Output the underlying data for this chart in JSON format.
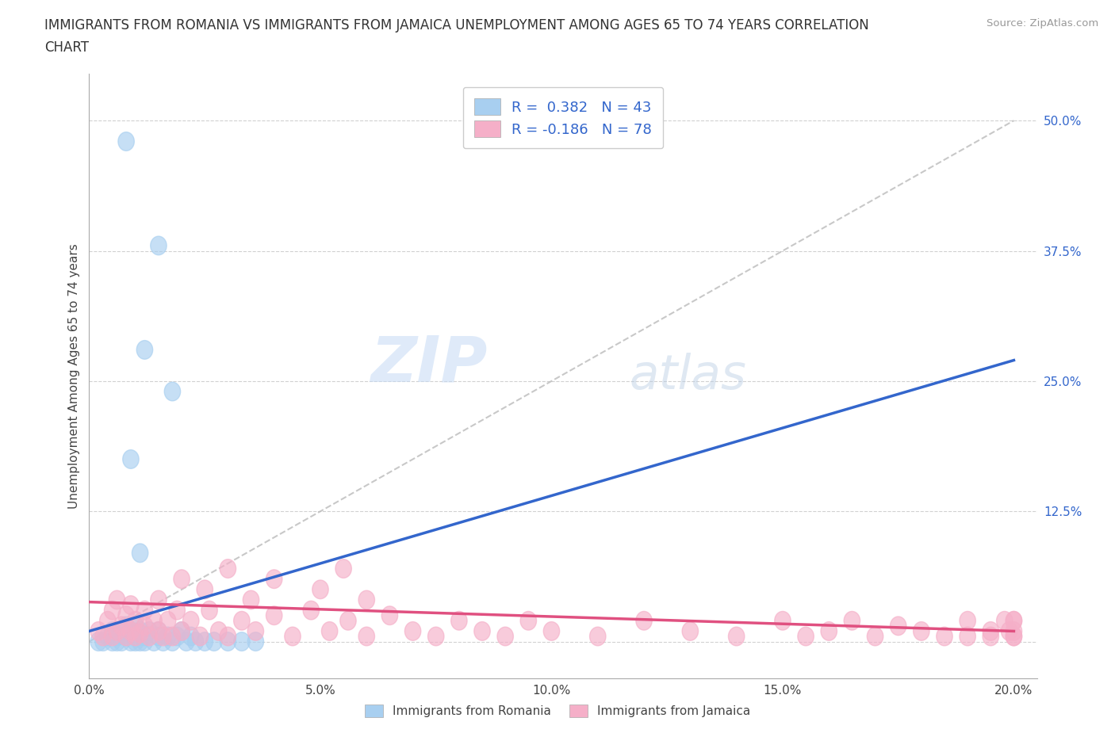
{
  "title_line1": "IMMIGRANTS FROM ROMANIA VS IMMIGRANTS FROM JAMAICA UNEMPLOYMENT AMONG AGES 65 TO 74 YEARS CORRELATION",
  "title_line2": "CHART",
  "source": "Source: ZipAtlas.com",
  "ylabel": "Unemployment Among Ages 65 to 74 years",
  "xlim": [
    0.0,
    0.205
  ],
  "ylim": [
    -0.035,
    0.545
  ],
  "yticks": [
    0.0,
    0.125,
    0.25,
    0.375,
    0.5
  ],
  "ytick_labels": [
    "",
    "12.5%",
    "25.0%",
    "37.5%",
    "50.0%"
  ],
  "xticks": [
    0.0,
    0.05,
    0.1,
    0.15,
    0.2
  ],
  "xtick_labels": [
    "0.0%",
    "5.0%",
    "10.0%",
    "15.0%",
    "20.0%"
  ],
  "romania_color": "#a8cff0",
  "romania_edge_color": "#a8cff0",
  "jamaica_color": "#f5afc8",
  "jamaica_edge_color": "#f5afc8",
  "romania_line_color": "#3366cc",
  "jamaica_line_color": "#e05080",
  "ref_line_color": "#bbbbbb",
  "R_romania": 0.382,
  "N_romania": 43,
  "R_jamaica": -0.186,
  "N_jamaica": 78,
  "watermark_zip": "ZIP",
  "watermark_atlas": "atlas",
  "legend_label_romania": "Immigrants from Romania",
  "legend_label_jamaica": "Immigrants from Jamaica",
  "background_color": "#ffffff",
  "grid_color": "#cccccc",
  "romania_trend_x": [
    0.0,
    0.2
  ],
  "romania_trend_y": [
    0.01,
    0.27
  ],
  "jamaica_trend_x": [
    0.0,
    0.2
  ],
  "jamaica_trend_y": [
    0.038,
    0.01
  ],
  "ref_trend_x": [
    0.0,
    0.2
  ],
  "ref_trend_y": [
    0.0,
    0.5
  ],
  "romania_x": [
    0.002,
    0.003,
    0.004,
    0.005,
    0.005,
    0.006,
    0.006,
    0.007,
    0.007,
    0.008,
    0.008,
    0.009,
    0.009,
    0.01,
    0.01,
    0.01,
    0.011,
    0.011,
    0.012,
    0.012,
    0.013,
    0.014,
    0.015,
    0.015,
    0.016,
    0.017,
    0.018,
    0.019,
    0.02,
    0.021,
    0.022,
    0.023,
    0.025,
    0.027,
    0.03,
    0.033,
    0.036,
    0.015,
    0.012,
    0.008,
    0.018,
    0.009,
    0.011
  ],
  "romania_y": [
    0.0,
    0.0,
    0.005,
    0.0,
    0.01,
    0.005,
    0.0,
    0.01,
    0.0,
    0.005,
    0.015,
    0.0,
    0.01,
    0.0,
    0.005,
    0.015,
    0.0,
    0.01,
    0.005,
    0.0,
    0.01,
    0.0,
    0.005,
    0.01,
    0.0,
    0.005,
    0.0,
    0.005,
    0.01,
    0.0,
    0.005,
    0.0,
    0.0,
    0.0,
    0.0,
    0.0,
    0.0,
    0.38,
    0.28,
    0.48,
    0.24,
    0.175,
    0.085
  ],
  "jamaica_x": [
    0.002,
    0.003,
    0.004,
    0.005,
    0.005,
    0.006,
    0.006,
    0.007,
    0.008,
    0.008,
    0.009,
    0.009,
    0.01,
    0.01,
    0.011,
    0.012,
    0.012,
    0.013,
    0.014,
    0.015,
    0.015,
    0.016,
    0.017,
    0.018,
    0.019,
    0.02,
    0.022,
    0.024,
    0.026,
    0.028,
    0.03,
    0.033,
    0.036,
    0.04,
    0.044,
    0.048,
    0.052,
    0.056,
    0.06,
    0.065,
    0.07,
    0.075,
    0.08,
    0.085,
    0.09,
    0.095,
    0.1,
    0.11,
    0.12,
    0.13,
    0.14,
    0.15,
    0.155,
    0.16,
    0.165,
    0.17,
    0.175,
    0.18,
    0.185,
    0.19,
    0.19,
    0.195,
    0.195,
    0.198,
    0.199,
    0.2,
    0.2,
    0.2,
    0.2,
    0.2,
    0.02,
    0.025,
    0.03,
    0.035,
    0.04,
    0.05,
    0.055,
    0.06
  ],
  "jamaica_y": [
    0.01,
    0.005,
    0.02,
    0.005,
    0.03,
    0.01,
    0.04,
    0.015,
    0.005,
    0.025,
    0.01,
    0.035,
    0.005,
    0.02,
    0.008,
    0.015,
    0.03,
    0.005,
    0.02,
    0.01,
    0.04,
    0.005,
    0.02,
    0.005,
    0.03,
    0.01,
    0.02,
    0.005,
    0.03,
    0.01,
    0.005,
    0.02,
    0.01,
    0.025,
    0.005,
    0.03,
    0.01,
    0.02,
    0.005,
    0.025,
    0.01,
    0.005,
    0.02,
    0.01,
    0.005,
    0.02,
    0.01,
    0.005,
    0.02,
    0.01,
    0.005,
    0.02,
    0.005,
    0.01,
    0.02,
    0.005,
    0.015,
    0.01,
    0.005,
    0.02,
    0.005,
    0.01,
    0.005,
    0.02,
    0.01,
    0.005,
    0.02,
    0.01,
    0.005,
    0.02,
    0.06,
    0.05,
    0.07,
    0.04,
    0.06,
    0.05,
    0.07,
    0.04
  ]
}
